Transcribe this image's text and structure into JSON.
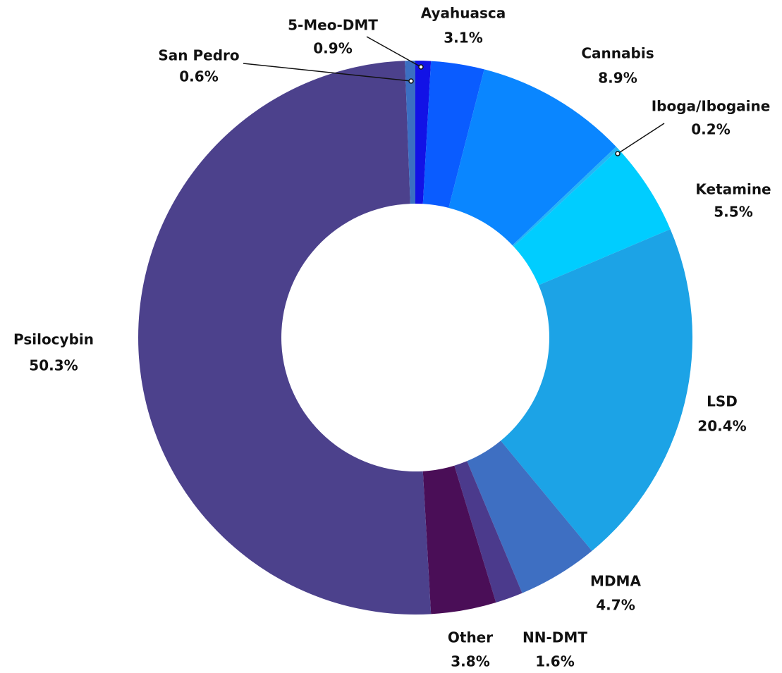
{
  "chart_data": {
    "type": "donut",
    "categories": [
      "5-Meo-DMT",
      "Ayahuasca",
      "Cannabis",
      "Iboga/Ibogaine",
      "Ketamine",
      "LSD",
      "MDMA",
      "NN-DMT",
      "Other",
      "Psilocybin",
      "San Pedro"
    ],
    "values": [
      0.9,
      3.1,
      8.9,
      0.2,
      5.5,
      20.4,
      4.7,
      1.6,
      3.8,
      50.3,
      0.6
    ],
    "value_labels": [
      "0.9%",
      "3.1%",
      "8.9%",
      "0.2%",
      "5.5%",
      "20.4%",
      "4.7%",
      "1.6%",
      "3.8%",
      "50.3%",
      "0.6%"
    ],
    "colors": [
      "#1212e6",
      "#0a5cff",
      "#0a86ff",
      "#25b4f5",
      "#00cdff",
      "#1ca3e6",
      "#3e6fc2",
      "#4b3a8c",
      "#4a0e57",
      "#4c418c",
      "#3b6fc2"
    ]
  }
}
